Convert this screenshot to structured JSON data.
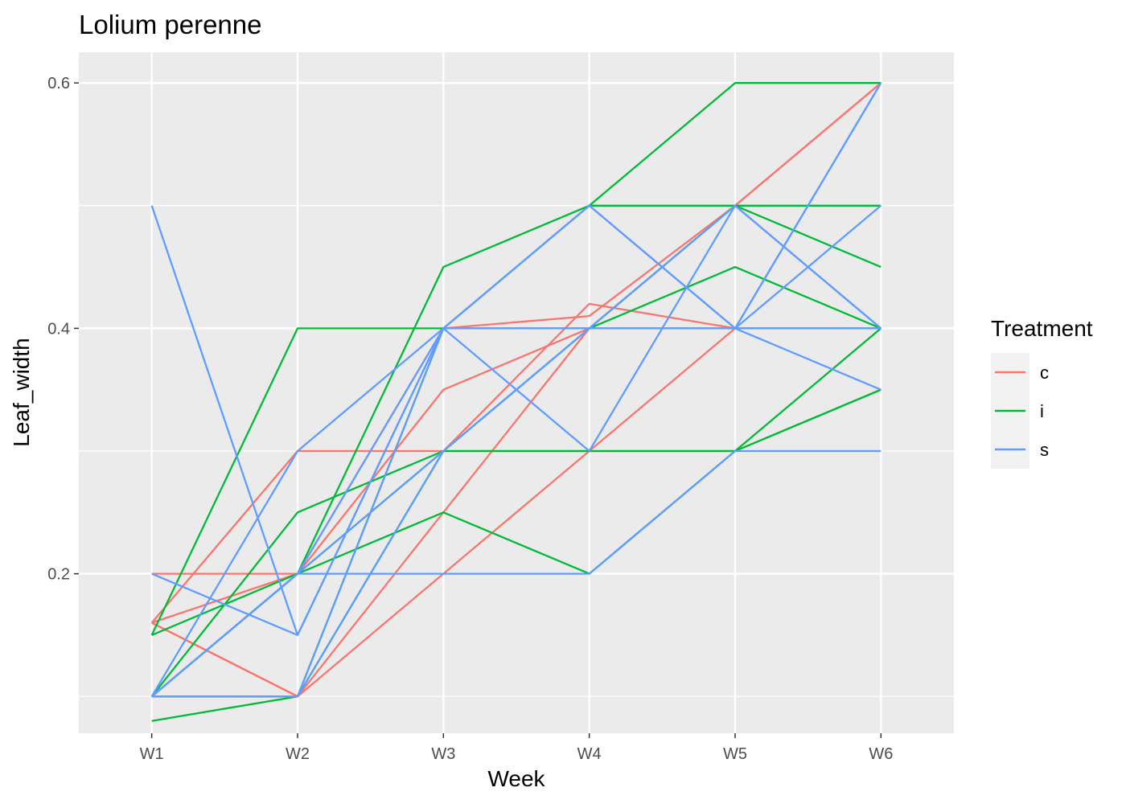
{
  "chart_data": {
    "type": "line",
    "title": "Lolium perenne",
    "xlabel": "Week",
    "ylabel": "Leaf_width",
    "categories": [
      "W1",
      "W2",
      "W3",
      "W4",
      "W5",
      "W6"
    ],
    "ylim": [
      0.07,
      0.625
    ],
    "yticks": [
      0.2,
      0.4,
      0.6
    ],
    "ytick_labels": [
      "0.2",
      "0.4",
      "0.6"
    ],
    "grid": true,
    "legend": {
      "title": "Treatment",
      "position": "right",
      "entries": [
        {
          "label": "c",
          "color": "#F8766D"
        },
        {
          "label": "i",
          "color": "#00BA38"
        },
        {
          "label": "s",
          "color": "#619CFF"
        }
      ]
    },
    "series": [
      {
        "treatment": "c",
        "values": [
          0.2,
          0.2,
          0.4,
          0.41,
          0.5,
          0.6
        ]
      },
      {
        "treatment": "c",
        "values": [
          0.16,
          0.3,
          0.3,
          0.42,
          0.4,
          0.4
        ]
      },
      {
        "treatment": "c",
        "values": [
          0.16,
          0.2,
          0.35,
          0.4,
          0.5,
          0.6
        ]
      },
      {
        "treatment": "c",
        "values": [
          0.16,
          0.1,
          0.25,
          0.4,
          0.4,
          0.4
        ]
      },
      {
        "treatment": "c",
        "values": [
          0.16,
          0.1,
          0.2,
          0.3,
          0.4,
          0.4
        ]
      },
      {
        "treatment": "i",
        "values": [
          0.15,
          0.4,
          0.4,
          0.5,
          0.6,
          0.6
        ]
      },
      {
        "treatment": "i",
        "values": [
          0.15,
          0.2,
          0.45,
          0.5,
          0.5,
          0.5
        ]
      },
      {
        "treatment": "i",
        "values": [
          0.1,
          0.25,
          0.3,
          0.3,
          0.3,
          0.35
        ]
      },
      {
        "treatment": "i",
        "values": [
          0.1,
          0.2,
          0.3,
          0.4,
          0.45,
          0.4
        ]
      },
      {
        "treatment": "i",
        "values": [
          0.08,
          0.1,
          0.3,
          0.3,
          0.3,
          0.4
        ]
      },
      {
        "treatment": "i",
        "values": [
          0.1,
          0.2,
          0.25,
          0.2,
          0.3,
          0.35
        ]
      },
      {
        "treatment": "i",
        "values": [
          0.1,
          0.1,
          0.4,
          0.4,
          0.5,
          0.45
        ]
      },
      {
        "treatment": "s",
        "values": [
          0.5,
          0.15,
          0.4,
          0.5,
          0.4,
          0.35
        ]
      },
      {
        "treatment": "s",
        "values": [
          0.2,
          0.15,
          0.4,
          0.3,
          0.5,
          0.4
        ]
      },
      {
        "treatment": "s",
        "values": [
          0.1,
          0.3,
          0.4,
          0.5,
          0.4,
          0.6
        ]
      },
      {
        "treatment": "s",
        "values": [
          0.1,
          0.2,
          0.4,
          0.4,
          0.4,
          0.5
        ]
      },
      {
        "treatment": "s",
        "values": [
          0.1,
          0.2,
          0.3,
          0.4,
          0.5,
          0.4
        ]
      },
      {
        "treatment": "s",
        "values": [
          0.1,
          0.2,
          0.2,
          0.2,
          0.3,
          0.3
        ]
      },
      {
        "treatment": "s",
        "values": [
          0.1,
          0.1,
          0.3,
          0.4,
          0.4,
          0.6
        ]
      },
      {
        "treatment": "s",
        "values": [
          0.1,
          0.1,
          0.4,
          0.4,
          0.4,
          0.4
        ]
      }
    ]
  }
}
